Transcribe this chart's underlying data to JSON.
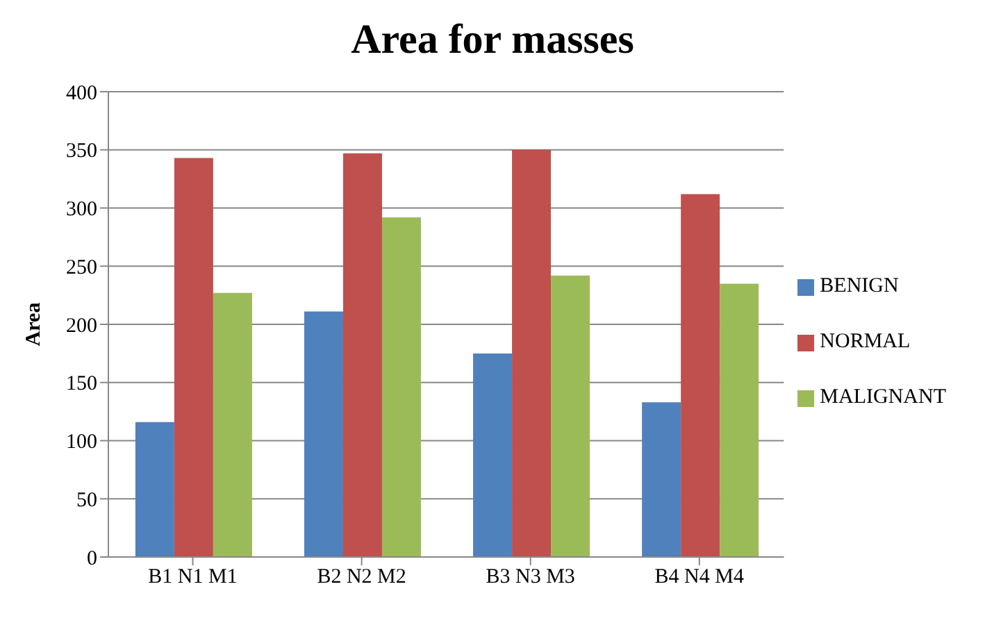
{
  "chart_data": {
    "type": "bar",
    "title": "Area for masses",
    "ylabel": "Area",
    "categories": [
      "B1 N1 M1",
      "B2 N2 M2",
      "B3 N3 M3",
      "B4 N4 M4"
    ],
    "series": [
      {
        "name": "BENIGN",
        "color": "#4f81bd",
        "values": [
          116,
          211,
          175,
          133
        ]
      },
      {
        "name": "NORMAL",
        "color": "#c0504d",
        "values": [
          343,
          347,
          350,
          312
        ]
      },
      {
        "name": "MALIGNANT",
        "color": "#9bbb59",
        "values": [
          227,
          292,
          242,
          235
        ]
      }
    ],
    "ylim": [
      0,
      400
    ],
    "yticks": [
      0,
      50,
      100,
      150,
      200,
      250,
      300,
      350,
      400
    ],
    "grid": "y",
    "legend": "right"
  }
}
